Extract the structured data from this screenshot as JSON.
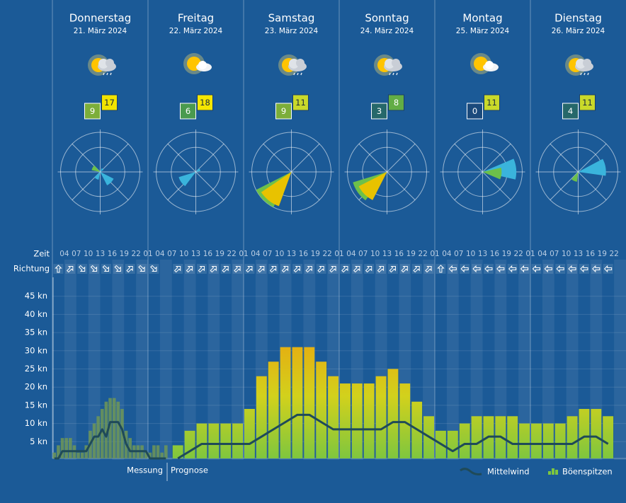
{
  "days": [
    {
      "name": "Donnerstag",
      "date": "21. März 2024",
      "mean": 9,
      "mean_color": "#7cae3a",
      "gust": 17,
      "gust_color": "#f2e400",
      "rose": [
        {
          "direction": 300,
          "share": 22,
          "color": "#6cc04a"
        },
        {
          "direction": 135,
          "share": 38,
          "color": "#3ab4dc"
        },
        {
          "direction": 210,
          "share": 20,
          "color": "#3ab4dc"
        },
        {
          "direction": 40,
          "share": 10,
          "color": "#3ab4dc"
        }
      ]
    },
    {
      "name": "Freitag",
      "date": "22. März 2024",
      "mean": 6,
      "mean_color": "#4a9a4e",
      "gust": 18,
      "gust_color": "#f5e600",
      "rose": [
        {
          "direction": 235,
          "share": 45,
          "color": "#3ab4dc"
        },
        {
          "direction": 60,
          "share": 12,
          "color": "#3ab4dc"
        }
      ]
    },
    {
      "name": "Samstag",
      "date": "23. März 2024",
      "mean": 9,
      "mean_color": "#7cae3a",
      "gust": 11,
      "gust_color": "#c9d92a",
      "rose": [
        {
          "direction": 225,
          "share": 100,
          "color": "#6cc04a"
        },
        {
          "direction": 218,
          "share": 92,
          "color": "#e8c200"
        }
      ]
    },
    {
      "name": "Sonntag",
      "date": "24. März 2024",
      "mean": 3,
      "mean_color": "#26686a",
      "gust": 8,
      "gust_color": "#62ad45",
      "rose": [
        {
          "direction": 235,
          "share": 90,
          "color": "#6cc04a"
        },
        {
          "direction": 225,
          "share": 80,
          "color": "#e8c200"
        }
      ]
    },
    {
      "name": "Montag",
      "date": "25. März 2024",
      "mean": 0,
      "mean_color": "#1b4a7c",
      "gust": 11,
      "gust_color": "#c9d92a",
      "rose": [
        {
          "direction": 85,
          "share": 85,
          "color": "#3ab4dc"
        },
        {
          "direction": 95,
          "share": 48,
          "color": "#6cc04a"
        }
      ]
    },
    {
      "name": "Dienstag",
      "date": "26. März 2024",
      "mean": 4,
      "mean_color": "#26686a",
      "gust": 11,
      "gust_color": "#c9d92a",
      "rose": [
        {
          "direction": 80,
          "share": 70,
          "color": "#3ab4dc"
        },
        {
          "direction": 205,
          "share": 25,
          "color": "#6cc04a"
        }
      ]
    }
  ],
  "chart_data": {
    "type": "bar",
    "time_label": "Zeit",
    "direction_label": "Richtung",
    "hours": [
      "04",
      "07",
      "10",
      "13",
      "16",
      "19",
      "22",
      "01",
      "04",
      "07",
      "10",
      "13",
      "16",
      "19",
      "22",
      "01",
      "04",
      "07",
      "10",
      "13",
      "16",
      "19",
      "22",
      "01",
      "04",
      "07",
      "10",
      "13",
      "16",
      "19",
      "22",
      "01",
      "04",
      "07",
      "10",
      "13",
      "16",
      "19",
      "22",
      "01",
      "04",
      "07",
      "10",
      "13",
      "16",
      "19",
      "22"
    ],
    "directions": {
      "measured": [
        0,
        45,
        135,
        135,
        135,
        135,
        45,
        135,
        135
      ],
      "forecast": [
        45,
        45,
        45,
        45,
        45,
        45,
        45,
        45,
        45,
        45,
        45,
        45,
        45,
        45,
        45,
        45,
        45,
        45,
        45,
        45,
        45,
        45,
        0,
        270,
        270,
        270,
        270,
        270,
        270,
        270,
        270,
        270,
        270,
        270,
        270,
        270,
        270
      ]
    },
    "ylim": [
      0,
      50
    ],
    "yticks": [
      {
        "value": 5,
        "label": "5 kn"
      },
      {
        "value": 10,
        "label": "10 kn"
      },
      {
        "value": 15,
        "label": "15 kn"
      },
      {
        "value": 20,
        "label": "20 kn"
      },
      {
        "value": 25,
        "label": "25 kn"
      },
      {
        "value": 30,
        "label": "30 kn"
      },
      {
        "value": 35,
        "label": "35 kn"
      },
      {
        "value": 40,
        "label": "40 kn"
      },
      {
        "value": 45,
        "label": "45 kn"
      }
    ],
    "grid": true,
    "measured_label": "Messung",
    "forecast_label": "Prognose",
    "series": [
      {
        "name": "Mittelwind",
        "color": "#1f4a58",
        "measured": [
          0,
          0,
          2,
          2,
          2,
          2,
          2,
          2,
          2,
          4,
          6,
          6,
          8,
          6,
          10,
          10,
          10,
          8,
          4,
          2,
          2,
          2,
          2,
          2,
          0,
          0,
          0,
          0,
          0
        ],
        "values": [
          0,
          2,
          4,
          4,
          4,
          4,
          4,
          6,
          8,
          10,
          12,
          12,
          10,
          8,
          8,
          8,
          8,
          8,
          10,
          10,
          8,
          6,
          4,
          2,
          4,
          4,
          6,
          6,
          4,
          4,
          4,
          4,
          4,
          4,
          6,
          6,
          4
        ]
      },
      {
        "name": "Böenspitzen",
        "color": "#7dc63f",
        "measured_color": "#6e9656",
        "color_scale": [
          "#7dc63f",
          "#d2d11c",
          "#e9a70f"
        ],
        "measured": [
          2,
          4,
          6,
          6,
          6,
          4,
          2,
          2,
          4,
          8,
          10,
          12,
          14,
          16,
          17,
          17,
          16,
          14,
          8,
          6,
          4,
          4,
          4,
          2,
          2,
          4,
          4,
          2,
          4
        ],
        "values": [
          4,
          8,
          10,
          10,
          10,
          10,
          14,
          23,
          27,
          31,
          31,
          31,
          27,
          23,
          21,
          21,
          21,
          23,
          25,
          21,
          16,
          12,
          8,
          8,
          10,
          12,
          12,
          12,
          12,
          10,
          10,
          10,
          10,
          12,
          14,
          14,
          12
        ]
      }
    ]
  }
}
